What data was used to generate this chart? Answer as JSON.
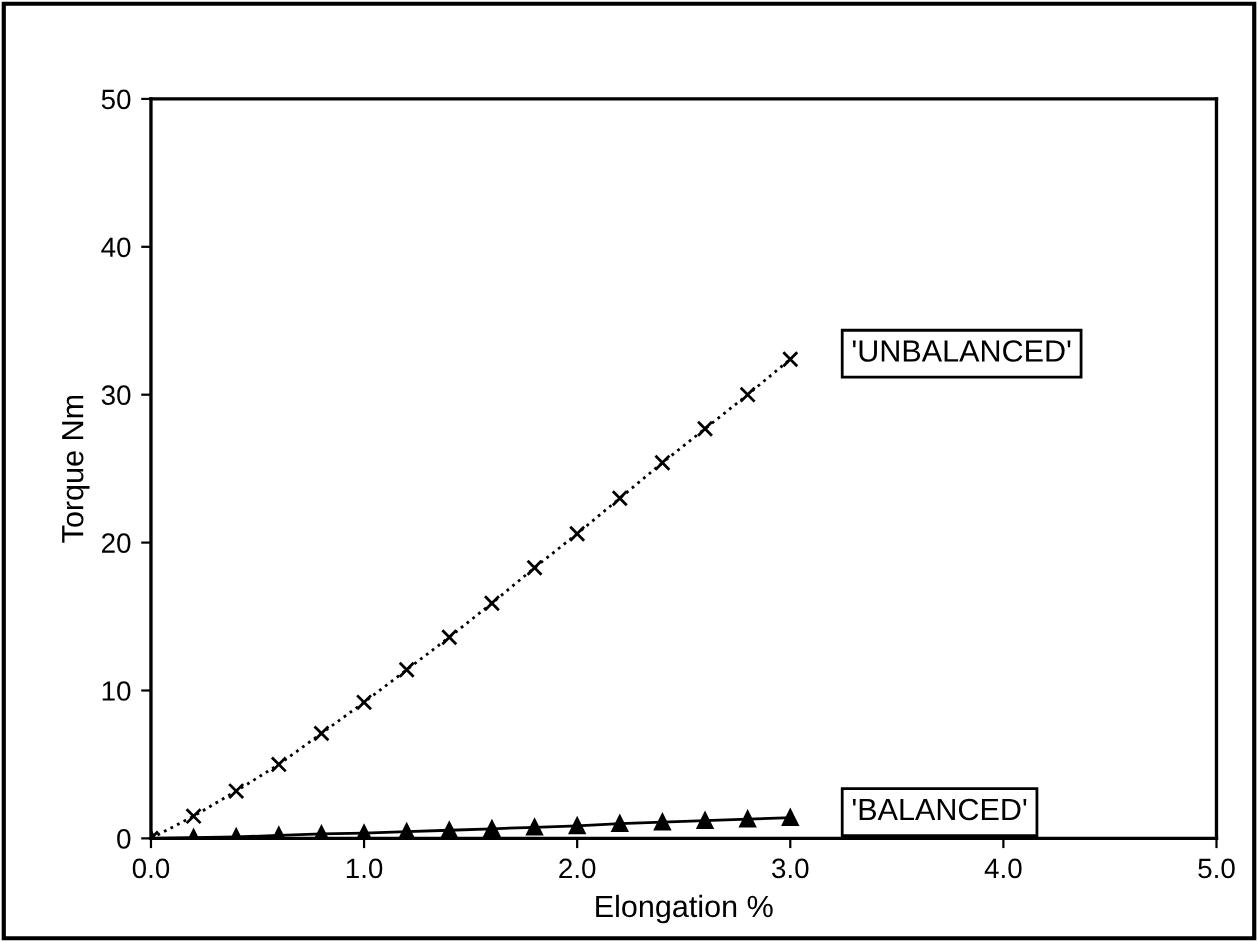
{
  "chart_data": {
    "type": "line",
    "xlabel": "Elongation %",
    "ylabel": "Torque Nm",
    "x": [
      0.0,
      0.2,
      0.4,
      0.6,
      0.8,
      1.0,
      1.2,
      1.4,
      1.6,
      1.8,
      2.0,
      2.2,
      2.4,
      2.6,
      2.8,
      3.0
    ],
    "series": [
      {
        "name": "'UNBALANCED'",
        "color": "#000000",
        "marker": "cross",
        "line_style": "dotted",
        "values": [
          0,
          1.5,
          3.2,
          5.0,
          7.1,
          9.2,
          11.4,
          13.6,
          15.9,
          18.3,
          20.6,
          23.0,
          25.4,
          27.7,
          30.0,
          32.4
        ]
      },
      {
        "name": "'BALANCED'",
        "color": "#000000",
        "marker": "triangle",
        "line_style": "solid",
        "values": [
          0,
          0.05,
          0.1,
          0.2,
          0.3,
          0.35,
          0.45,
          0.55,
          0.65,
          0.75,
          0.85,
          1.0,
          1.1,
          1.2,
          1.3,
          1.4
        ]
      }
    ],
    "xlim": [
      0,
      5
    ],
    "xticks": [
      {
        "value": 0,
        "label": "0.0"
      },
      {
        "value": 1,
        "label": "1.0"
      },
      {
        "value": 2,
        "label": "2.0"
      },
      {
        "value": 3,
        "label": "3.0"
      },
      {
        "value": 4,
        "label": "4.0"
      },
      {
        "value": 5,
        "label": "5.0"
      }
    ],
    "ylim": [
      0,
      50
    ],
    "yticks": [
      0,
      10,
      20,
      30,
      40,
      50
    ],
    "grid": false,
    "legend": false
  }
}
